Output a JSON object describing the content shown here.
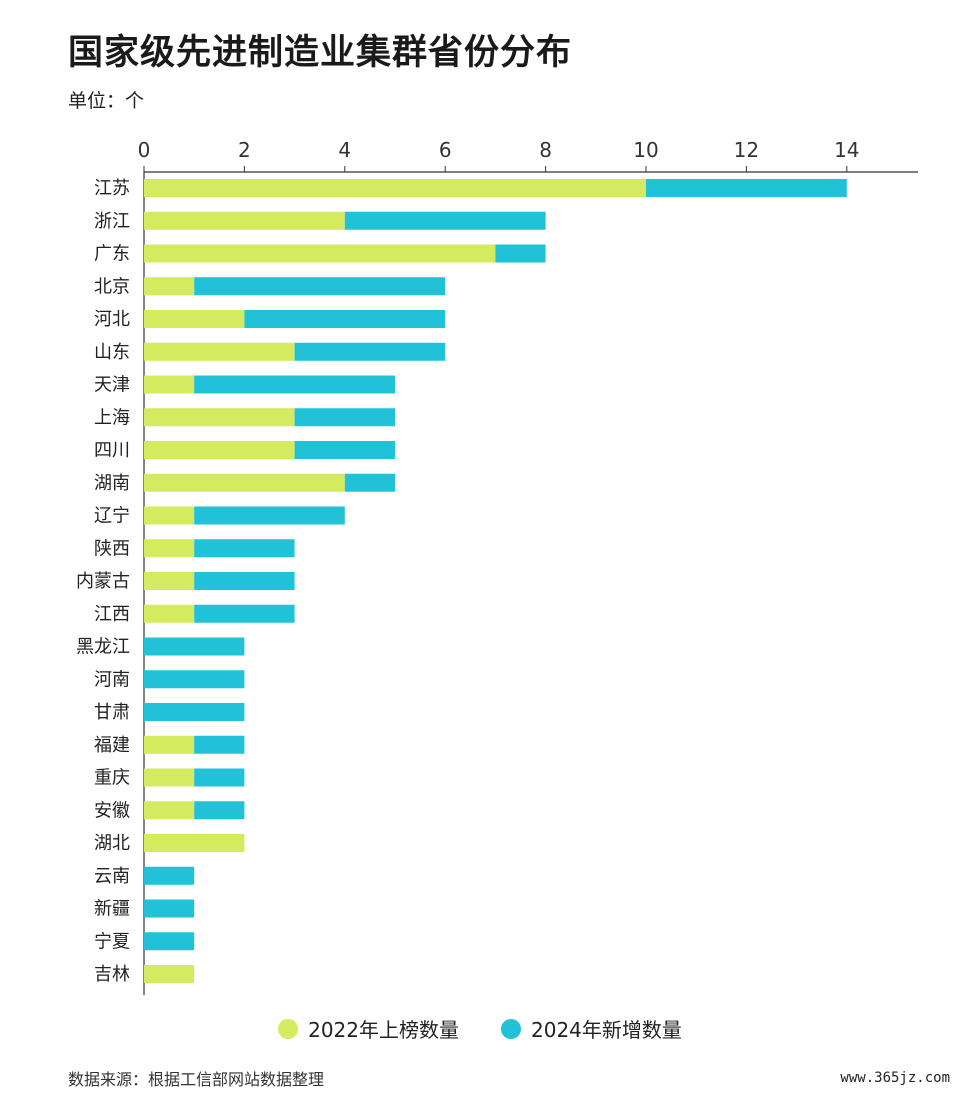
{
  "title": "国家级先进制造业集群省份分布",
  "unit": "单位：个",
  "source": "数据来源：根据工信部网站数据整理",
  "site": "www.365jz.com",
  "colors": {
    "series_2022": "#d4ea5f",
    "series_2024": "#21c2d8"
  },
  "chart_data": {
    "type": "bar",
    "orientation": "horizontal",
    "stacked": true,
    "categories": [
      "江苏",
      "浙江",
      "广东",
      "北京",
      "河北",
      "山东",
      "天津",
      "上海",
      "四川",
      "湖南",
      "辽宁",
      "陕西",
      "内蒙古",
      "江西",
      "黑龙江",
      "河南",
      "甘肃",
      "福建",
      "重庆",
      "安徽",
      "湖北",
      "云南",
      "新疆",
      "宁夏",
      "吉林"
    ],
    "series": [
      {
        "name": "2022年上榜数量",
        "values": [
          10,
          4,
          7,
          1,
          2,
          3,
          1,
          3,
          3,
          4,
          1,
          1,
          1,
          1,
          0,
          0,
          0,
          1,
          1,
          1,
          2,
          0,
          0,
          0,
          1
        ]
      },
      {
        "name": "2024年新增数量",
        "values": [
          4,
          4,
          1,
          5,
          4,
          3,
          4,
          2,
          2,
          1,
          3,
          2,
          2,
          2,
          2,
          2,
          2,
          1,
          1,
          1,
          0,
          1,
          1,
          1,
          0
        ]
      }
    ],
    "xlim": [
      0,
      15
    ],
    "xticks": [
      0,
      2,
      4,
      6,
      8,
      10,
      12,
      14
    ],
    "grid": false,
    "legend_position": "bottom"
  }
}
